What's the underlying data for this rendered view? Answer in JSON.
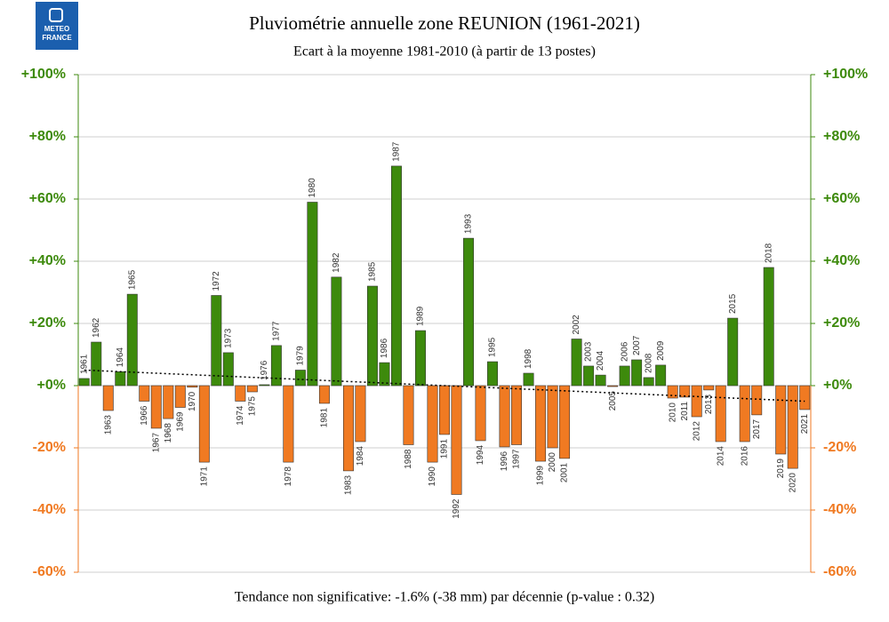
{
  "logo": {
    "line1": "METEO",
    "line2": "FRANCE"
  },
  "chart_data": {
    "type": "bar",
    "title": "Pluviométrie annuelle zone REUNION (1961-2021)",
    "subtitle": "Ecart à la moyenne 1981-2010 (à partir de 13 postes)",
    "footnote": "Tendance non significative: -1.6% (-38 mm) par décennie (p-value : 0.32)",
    "categories": [
      "1961",
      "1962",
      "1963",
      "1964",
      "1965",
      "1966",
      "1967",
      "1968",
      "1969",
      "1970",
      "1971",
      "1972",
      "1973",
      "1974",
      "1975",
      "1976",
      "1977",
      "1978",
      "1979",
      "1980",
      "1981",
      "1982",
      "1983",
      "1984",
      "1985",
      "1986",
      "1987",
      "1988",
      "1989",
      "1990",
      "1991",
      "1992",
      "1993",
      "1994",
      "1995",
      "1996",
      "1997",
      "1998",
      "1999",
      "2000",
      "2001",
      "2002",
      "2003",
      "2004",
      "2005",
      "2006",
      "2007",
      "2008",
      "2009",
      "2010",
      "2011",
      "2012",
      "2013",
      "2014",
      "2015",
      "2016",
      "2017",
      "2018",
      "2019",
      "2020",
      "2021"
    ],
    "values": [
      2.3,
      14,
      -8,
      4.5,
      29.4,
      -5,
      -13.7,
      -10.6,
      -7,
      -0.5,
      -24.6,
      29,
      10.6,
      -5,
      -2,
      0.3,
      12.9,
      -24.6,
      5,
      59,
      -5.7,
      34.9,
      -27.4,
      -18,
      32,
      7.4,
      70.6,
      -19,
      17.7,
      -24.6,
      -15.7,
      -35,
      47.4,
      -17.7,
      7.7,
      -19.7,
      -19,
      4,
      -24.3,
      -20,
      -23.4,
      15,
      6.3,
      3.4,
      -0.3,
      6.3,
      8.3,
      2.6,
      6.6,
      -4,
      -3.7,
      -10,
      -1.4,
      -18,
      21.7,
      -18,
      -9.4,
      38,
      -22,
      -26.6,
      -7.7
    ],
    "positive_color": "#3d8a0c",
    "negative_color": "#f07a22",
    "trend": {
      "x": [
        1961,
        2021
      ],
      "values": [
        5,
        -5
      ]
    },
    "ylim": [
      -60,
      100
    ],
    "yticks": [
      {
        "value": -60,
        "label": "-60%"
      },
      {
        "value": -40,
        "label": "-40%"
      },
      {
        "value": -20,
        "label": "-20%"
      },
      {
        "value": 0,
        "label": "+0%"
      },
      {
        "value": 20,
        "label": "+20%"
      },
      {
        "value": 40,
        "label": "+40%"
      },
      {
        "value": 60,
        "label": "+60%"
      },
      {
        "value": 80,
        "label": "+80%"
      },
      {
        "value": 100,
        "label": "+100%"
      }
    ],
    "grid": true
  }
}
